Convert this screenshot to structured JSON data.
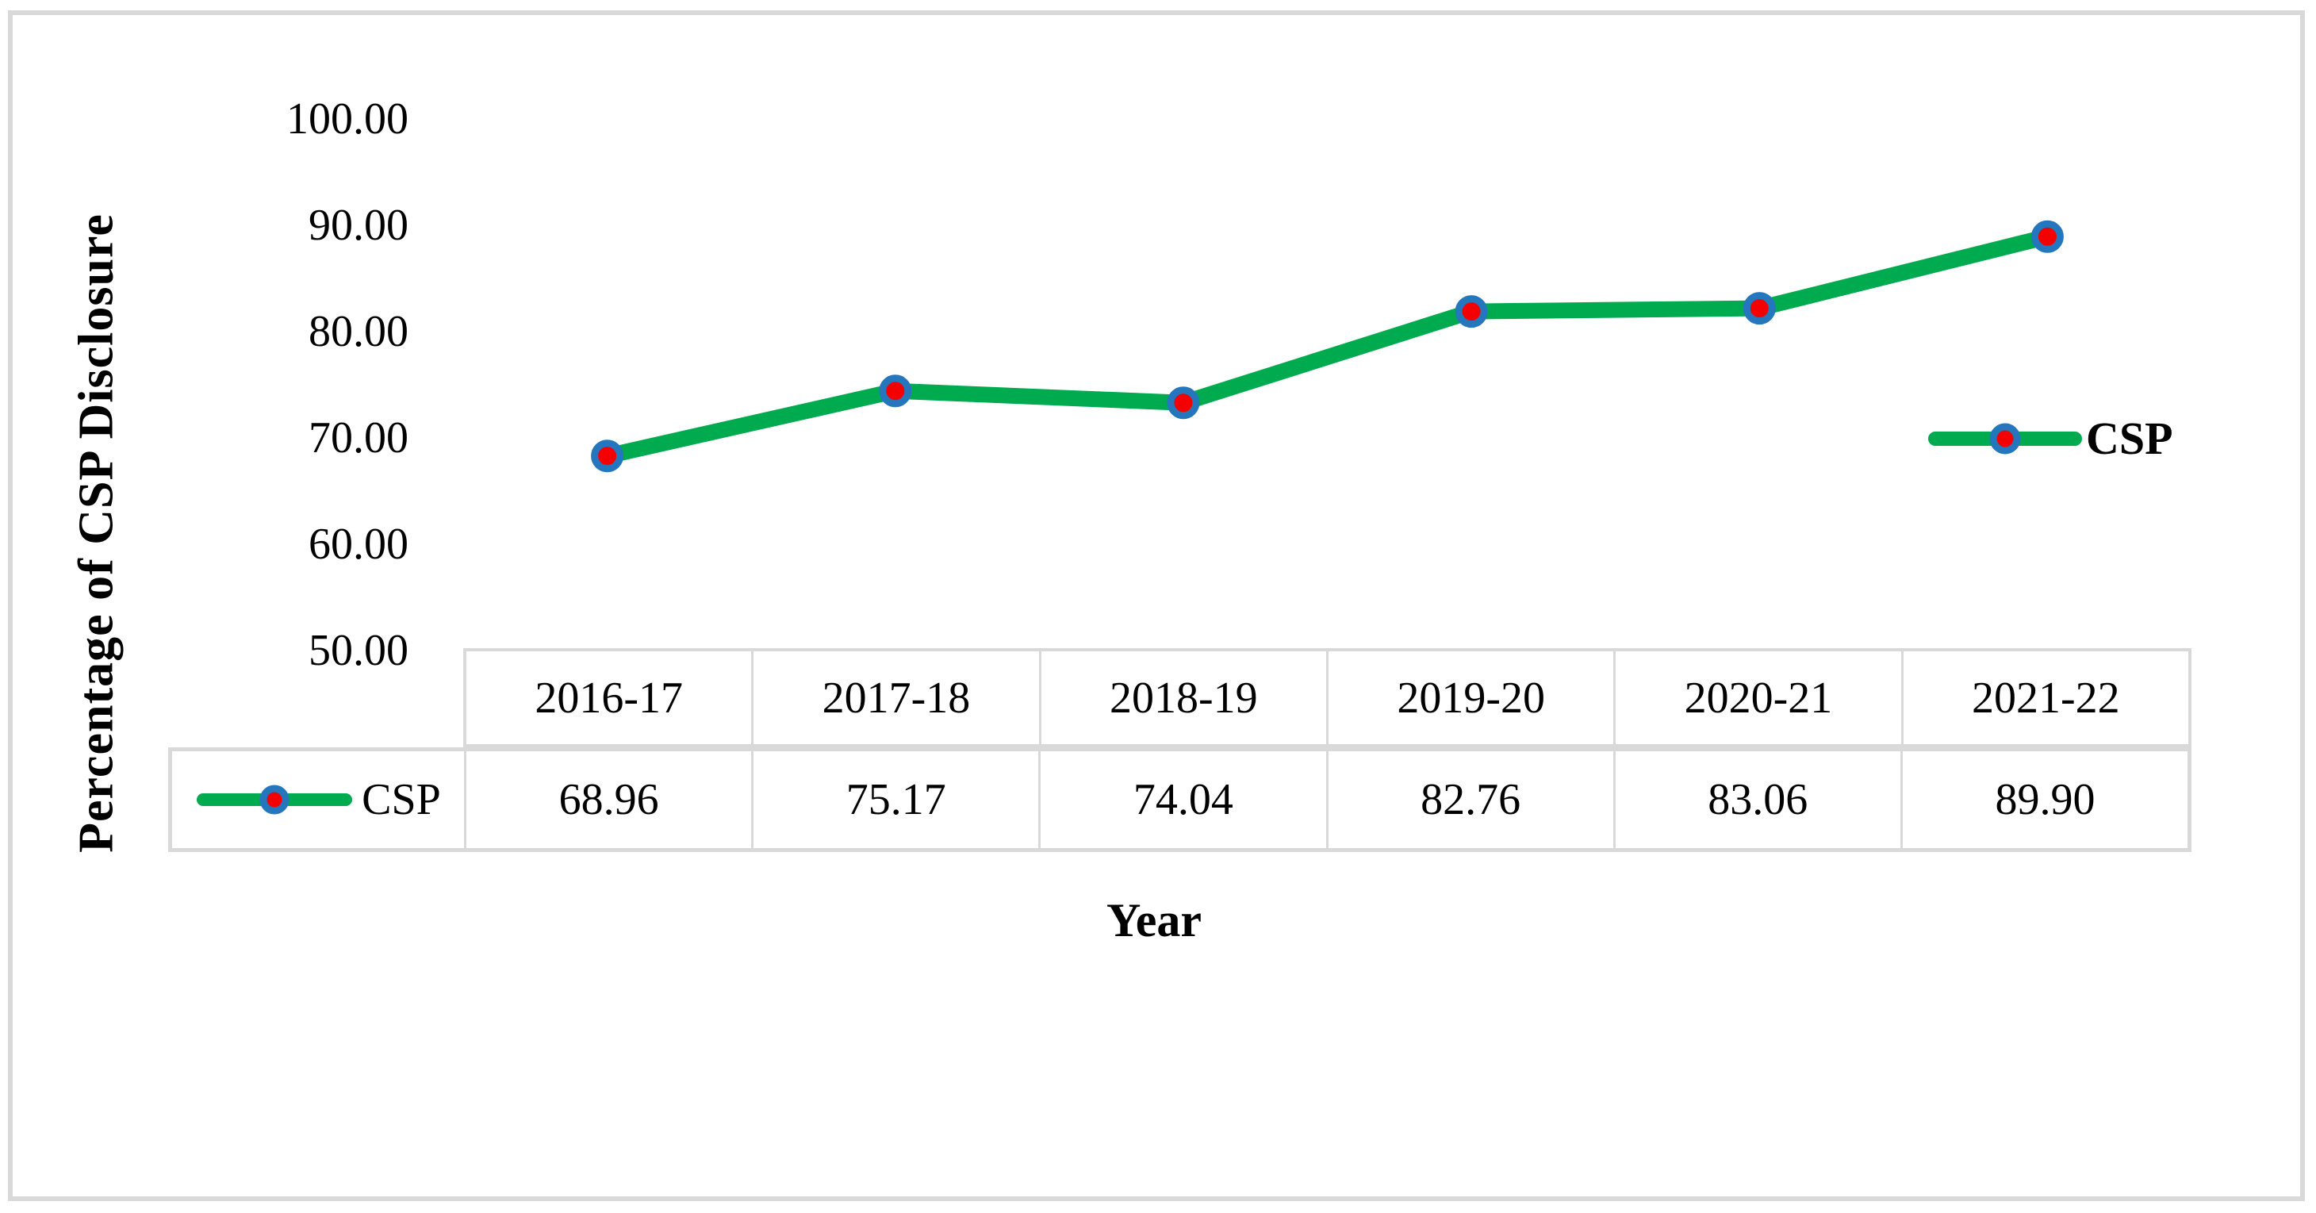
{
  "figure": {
    "background": "#ffffff",
    "border_color": "#d9d9d9"
  },
  "chart_data": {
    "type": "line",
    "categories": [
      "2016-17",
      "2017-18",
      "2018-19",
      "2019-20",
      "2020-21",
      "2021-22"
    ],
    "series": [
      {
        "name": "CSP",
        "values": [
          68.96,
          75.17,
          74.04,
          82.76,
          83.06,
          89.9
        ]
      }
    ],
    "xlabel": "Year",
    "ylabel": "Percentage of CSP Disclosure",
    "ylim": [
      50,
      100
    ],
    "ytick_step": 10,
    "yticks": [
      "100.00",
      "90.00",
      "80.00",
      "70.00",
      "60.00",
      "50.00"
    ],
    "grid": false,
    "legend_position": "right",
    "legend_label": "CSP",
    "colors": {
      "line": "#00ab4f",
      "marker_fill": "#f40000",
      "marker_ring": "#2577bd"
    }
  },
  "table": {
    "row_label": "CSP",
    "columns": [
      "2016-17",
      "2017-18",
      "2018-19",
      "2019-20",
      "2020-21",
      "2021-22"
    ],
    "values": [
      "68.96",
      "75.17",
      "74.04",
      "82.76",
      "83.06",
      "89.90"
    ]
  }
}
